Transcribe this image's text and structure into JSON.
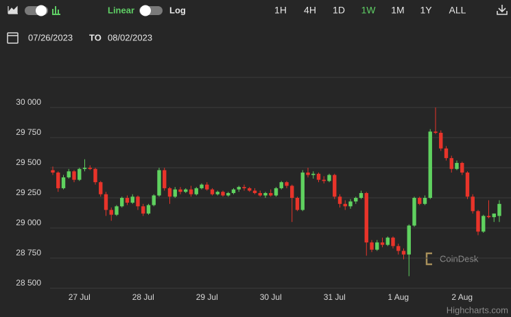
{
  "toolbar": {
    "scale_linear": "Linear",
    "scale_log": "Log",
    "ranges": [
      "1H",
      "4H",
      "1D",
      "1W",
      "1M",
      "1Y",
      "ALL"
    ]
  },
  "date_range": {
    "from": "07/26/2023",
    "separator": "TO",
    "to": "08/02/2023"
  },
  "watermark": "CoinDesk",
  "credit": "Highcharts.com",
  "chart_data": {
    "type": "candlestick",
    "categories": [
      null,
      null,
      null,
      null,
      null,
      "27 Jul",
      null,
      null,
      null,
      null,
      null,
      null,
      null,
      null,
      null,
      null,
      null,
      "28 Jul",
      null,
      null,
      null,
      null,
      null,
      null,
      null,
      null,
      null,
      null,
      null,
      "29 Jul",
      null,
      null,
      null,
      null,
      null,
      null,
      null,
      null,
      null,
      null,
      null,
      "30 Jul",
      null,
      null,
      null,
      null,
      null,
      null,
      null,
      null,
      null,
      null,
      null,
      "31 Jul",
      null,
      null,
      null,
      null,
      null,
      null,
      null,
      null,
      null,
      null,
      null,
      "1 Aug",
      null,
      null,
      null,
      null,
      null,
      null,
      null,
      null,
      null,
      null,
      null,
      "2 Aug",
      null,
      null,
      null,
      null,
      null,
      null,
      null
    ],
    "open": [
      29480,
      29460,
      29330,
      29420,
      29470,
      29400,
      29490,
      29500,
      29490,
      29380,
      29280,
      29150,
      29110,
      29180,
      29250,
      29210,
      29260,
      29180,
      29120,
      29190,
      29270,
      29480,
      29330,
      29260,
      29320,
      29300,
      29320,
      29280,
      29330,
      29360,
      29320,
      29280,
      29300,
      29270,
      29290,
      29320,
      29340,
      29330,
      29310,
      29290,
      29270,
      29290,
      29270,
      29330,
      29380,
      29350,
      29250,
      29150,
      29460,
      29440,
      29450,
      29400,
      29390,
      29440,
      29260,
      29200,
      29180,
      29220,
      29250,
      29290,
      28880,
      28820,
      28880,
      28860,
      28920,
      28850,
      28810,
      28780,
      29020,
      29250,
      29200,
      29250,
      29800,
      29790,
      29660,
      29580,
      29490,
      29540,
      29460,
      29260,
      29140,
      28970,
      29100,
      29090,
      29100
    ],
    "high": [
      29510,
      29470,
      29440,
      29490,
      29480,
      29500,
      29570,
      29520,
      29500,
      29390,
      29300,
      29170,
      29190,
      29260,
      29270,
      29280,
      29270,
      29200,
      29200,
      29280,
      29500,
      29500,
      29340,
      29340,
      29340,
      29330,
      29350,
      29340,
      29370,
      29380,
      29330,
      29310,
      29310,
      29300,
      29330,
      29350,
      29360,
      29340,
      29330,
      29310,
      29300,
      29320,
      29340,
      29390,
      29390,
      29360,
      29260,
      29480,
      29500,
      29470,
      29460,
      29430,
      29450,
      29450,
      29280,
      29230,
      29240,
      29260,
      29310,
      29300,
      28900,
      28900,
      28920,
      28930,
      28930,
      28870,
      28830,
      29030,
      29260,
      29260,
      29270,
      29820,
      30000,
      29810,
      29680,
      29600,
      29560,
      29550,
      29470,
      29280,
      29150,
      29110,
      29230,
      29120,
      29230
    ],
    "low": [
      29440,
      29300,
      29320,
      29410,
      29380,
      29390,
      29470,
      29480,
      29360,
      29260,
      29100,
      29060,
      29100,
      29170,
      29190,
      29200,
      29150,
      29100,
      29110,
      29180,
      29260,
      29310,
      29200,
      29250,
      29280,
      29290,
      29260,
      29270,
      29320,
      29310,
      29270,
      29270,
      29260,
      29260,
      29280,
      29300,
      29310,
      29300,
      29280,
      29260,
      29250,
      29260,
      29260,
      29320,
      29330,
      29050,
      29140,
      29140,
      29420,
      29410,
      29380,
      29370,
      29380,
      29240,
      29170,
      29150,
      29160,
      29200,
      29240,
      28770,
      28800,
      28810,
      28840,
      28850,
      28830,
      28780,
      28740,
      28600,
      29010,
      29190,
      29190,
      29240,
      29780,
      29640,
      29560,
      29460,
      29480,
      29440,
      29240,
      29120,
      28940,
      28960,
      29080,
      29050,
      29050
    ],
    "close": [
      29460,
      29330,
      29420,
      29470,
      29400,
      29490,
      29500,
      29490,
      29380,
      29280,
      29150,
      29110,
      29180,
      29250,
      29210,
      29260,
      29180,
      29120,
      29190,
      29270,
      29480,
      29330,
      29260,
      29320,
      29300,
      29320,
      29280,
      29330,
      29360,
      29320,
      29280,
      29300,
      29270,
      29290,
      29320,
      29340,
      29330,
      29310,
      29290,
      29270,
      29290,
      29270,
      29330,
      29380,
      29350,
      29250,
      29150,
      29460,
      29440,
      29450,
      29400,
      29390,
      29440,
      29260,
      29200,
      29180,
      29220,
      29250,
      29290,
      28880,
      28820,
      28880,
      28860,
      28920,
      28850,
      28810,
      28780,
      29020,
      29250,
      29200,
      29250,
      29800,
      29790,
      29660,
      29580,
      29490,
      29540,
      29460,
      29260,
      29140,
      28970,
      29100,
      29090,
      29120,
      29200
    ],
    "up_color": "#5fd15f",
    "down_color": "#e8342a",
    "ylim": [
      28500,
      30250
    ],
    "yticks": [
      {
        "value": 28500,
        "label": "28 500"
      },
      {
        "value": 28750,
        "label": "28 750"
      },
      {
        "value": 29000,
        "label": "29 000"
      },
      {
        "value": 29250,
        "label": "29 250"
      },
      {
        "value": 29500,
        "label": "29 500"
      },
      {
        "value": 29750,
        "label": "29 750"
      },
      {
        "value": 30000,
        "label": "30 000"
      }
    ],
    "grid": true
  }
}
